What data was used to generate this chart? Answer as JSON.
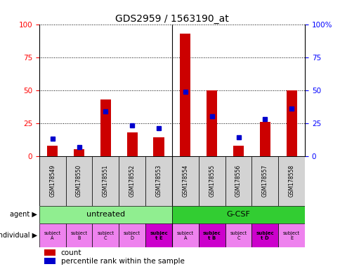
{
  "title": "GDS2959 / 1563190_at",
  "samples": [
    "GSM178549",
    "GSM178550",
    "GSM178551",
    "GSM178552",
    "GSM178553",
    "GSM178554",
    "GSM178555",
    "GSM178556",
    "GSM178557",
    "GSM178558"
  ],
  "count_values": [
    8,
    5,
    43,
    18,
    14,
    93,
    50,
    8,
    26,
    50
  ],
  "percentile_values": [
    13,
    7,
    34,
    23,
    21,
    49,
    30,
    14,
    28,
    36
  ],
  "bar_color": "#cc0000",
  "percentile_color": "#0000cc",
  "xlim_left": -0.5,
  "xlim_right": 9.5,
  "ylim": [
    0,
    100
  ],
  "yticks": [
    0,
    25,
    50,
    75,
    100
  ],
  "sample_row_color": "#d3d3d3",
  "agent_untreated_color": "#90ee90",
  "agent_gcsf_color": "#32cd32",
  "individual_row_color": "#ee82ee",
  "individual_highlight_color": "#cc00cc",
  "highlight_indices": [
    4,
    6,
    8
  ],
  "indiv_labels": [
    "subject\nA",
    "subject\nB",
    "subject\nC",
    "subject\nD",
    "subjec\nt E",
    "subject\nA",
    "subjec\nt B",
    "subject\nC",
    "subjec\nt D",
    "subject\nE"
  ],
  "indiv_bold": [
    false,
    false,
    false,
    false,
    true,
    false,
    true,
    false,
    true,
    false
  ]
}
